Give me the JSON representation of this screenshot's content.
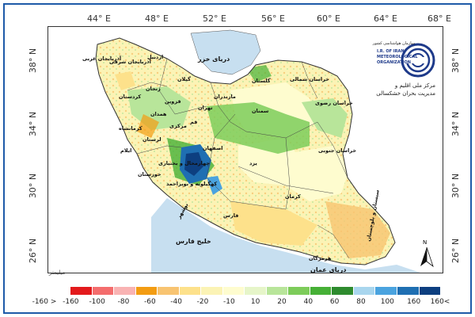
{
  "map": {
    "lon_ticks": [
      "44° E",
      "48° E",
      "52° E",
      "56° E",
      "60° E",
      "64° E",
      "68° E"
    ],
    "lat_ticks": [
      "38° N",
      "34° N",
      "30° N",
      "26° N"
    ],
    "places": {
      "caspian": "دریای خزر",
      "gulf": "خلیج فارس",
      "oman_sea": "دریای عمان",
      "semnan": "سمنان",
      "khorasan_razavi": "خراسان رضوی",
      "khorasan_shomali": "خراسان شمالی",
      "khorasan_jonubi": "خراسان جنوبی",
      "esfahan": "اصفهان",
      "yazd": "یزد",
      "kerman": "کرمان",
      "fars": "فارس",
      "sistan": "سیستان و بلوچستان",
      "hormozgan": "هرمزگان",
      "chaharmahal": "چهارمحال و بختیاری",
      "kohgiluyeh": "کهگیلویه و بویراحمد",
      "azarbaijan_gharbi": "آذربایجان غربی",
      "kermanshah": "کرمانشاه",
      "mazandaran": "مازندران",
      "golestan": "گلستان",
      "bushehr": "بوشهر",
      "khuzestan": "خوزستان",
      "tehran": "تهران",
      "markazi": "مرکزی",
      "qom": "قم",
      "ilam": "ایلام",
      "lorestan": "لرستان",
      "hamedan": "همدان",
      "kordestan": "کردستان",
      "zanjan": "زنجان",
      "gilan": "گیلان",
      "qazvin": "قزوین",
      "ardabil": "اردبیل",
      "azarbaijan_sharghi": "آذربایجان شرقی"
    },
    "scale_label": "میلیمتر",
    "north_label": "N"
  },
  "logo": {
    "org_en_line1": "I.R. OF IRAN",
    "org_en_line2": "METEOROLOGICAL",
    "org_en_line3": "ORGANIZATION",
    "org_fa_line1": "مرکز ملی اقلیم و",
    "org_fa_line2": "مدیریت بحران خشکسالی",
    "org_fa_top": "سازمان هواشناسی کشور"
  },
  "legend": {
    "colors": [
      "#e31a1c",
      "#f46d6d",
      "#f9b3b3",
      "#f39c12",
      "#f8c471",
      "#fde18b",
      "#fbf3b5",
      "#fefccf",
      "#e6f5c9",
      "#b8e59a",
      "#7dcc5a",
      "#46b036",
      "#2e8b2e",
      "#a9d6ee",
      "#4aa3df",
      "#1f6fb2",
      "#0d3f80"
    ],
    "labels": [
      "-160 >",
      "-160",
      "-100",
      "-80",
      "-60",
      "-40",
      "-20",
      "-10",
      "10",
      "20",
      "40",
      "60",
      "80",
      "100",
      "160",
      "160<"
    ]
  }
}
